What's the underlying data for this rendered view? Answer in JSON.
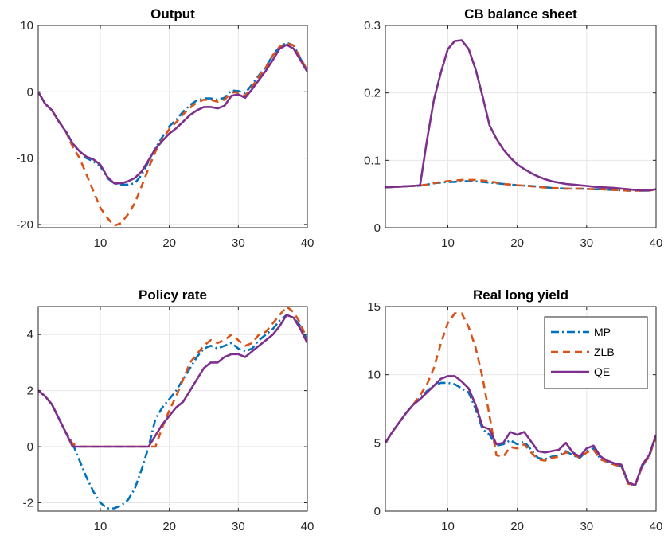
{
  "colors": {
    "MP": "#0072BD",
    "ZLB": "#D95319",
    "QE": "#7E2F8E",
    "grid": "#e6e6e6",
    "axis": "#262626"
  },
  "legend": {
    "items": [
      "MP",
      "ZLB",
      "QE"
    ],
    "placement": "top-right of Real long yield panel"
  },
  "chart_data": [
    {
      "type": "line",
      "title": "Output",
      "xlabel": "",
      "ylabel": "",
      "xlim": [
        1,
        40
      ],
      "ylim": [
        -20.5,
        10
      ],
      "xticks": [
        10,
        20,
        30,
        40
      ],
      "yticks": [
        -20,
        -10,
        0,
        10
      ],
      "yticklabels": [
        "-20",
        "-10",
        "0",
        "10"
      ],
      "grid": true,
      "x": [
        1,
        2,
        3,
        4,
        5,
        6,
        7,
        8,
        9,
        10,
        11,
        12,
        13,
        14,
        15,
        16,
        17,
        18,
        19,
        20,
        21,
        22,
        23,
        24,
        25,
        26,
        27,
        28,
        29,
        30,
        31,
        32,
        33,
        34,
        35,
        36,
        37,
        38,
        39,
        40
      ],
      "series": [
        {
          "name": "MP",
          "values": [
            0,
            -1.8,
            -2.8,
            -4.5,
            -6,
            -7.8,
            -9,
            -10,
            -10.5,
            -11.2,
            -13,
            -13.8,
            -14,
            -14,
            -13.8,
            -12.5,
            -10.5,
            -8.5,
            -6.8,
            -5.2,
            -4.2,
            -3,
            -2,
            -1.3,
            -1,
            -1,
            -1.2,
            -0.9,
            0.2,
            0.1,
            -0.2,
            1.1,
            2.5,
            3.8,
            5.5,
            6.8,
            7.4,
            7,
            5,
            3.2
          ]
        },
        {
          "name": "ZLB",
          "values": [
            0,
            -1.8,
            -2.8,
            -4.5,
            -6,
            -8.3,
            -10,
            -12.5,
            -15,
            -17.5,
            -19,
            -20.2,
            -19.8,
            -18.5,
            -16.8,
            -14.2,
            -11.5,
            -9,
            -7.2,
            -5.6,
            -4.6,
            -3.4,
            -2.4,
            -1.6,
            -1.2,
            -1.2,
            -1.5,
            -1.2,
            -0.1,
            -0.1,
            -0.6,
            0.8,
            2.3,
            3.7,
            5.5,
            6.8,
            7.3,
            7,
            5.1,
            3.2
          ]
        },
        {
          "name": "QE",
          "values": [
            0,
            -1.8,
            -2.8,
            -4.5,
            -6,
            -7.8,
            -9,
            -9.8,
            -10.2,
            -11,
            -12.8,
            -13.8,
            -13.8,
            -13.5,
            -13,
            -12,
            -10.3,
            -8.6,
            -7.4,
            -6.3,
            -5.5,
            -4.5,
            -3.5,
            -2.8,
            -2.3,
            -2.3,
            -2.5,
            -2.1,
            -0.6,
            -0.4,
            -0.9,
            0.4,
            1.8,
            3.2,
            4.8,
            6.5,
            7.1,
            6.5,
            4.8,
            3
          ]
        }
      ]
    },
    {
      "type": "line",
      "title": "CB balance sheet",
      "xlabel": "",
      "ylabel": "",
      "xlim": [
        1,
        40
      ],
      "ylim": [
        0,
        0.3
      ],
      "xticks": [
        10,
        20,
        30,
        40
      ],
      "yticks": [
        0,
        0.1,
        0.2,
        0.3
      ],
      "yticklabels": [
        "0",
        "0.1",
        "0.2",
        "0.3"
      ],
      "grid": true,
      "x": [
        1,
        2,
        3,
        4,
        5,
        6,
        7,
        8,
        9,
        10,
        11,
        12,
        13,
        14,
        15,
        16,
        17,
        18,
        19,
        20,
        21,
        22,
        23,
        24,
        25,
        26,
        27,
        28,
        29,
        30,
        31,
        32,
        33,
        34,
        35,
        36,
        37,
        38,
        39,
        40
      ],
      "series": [
        {
          "name": "MP",
          "values": [
            0.06,
            0.0605,
            0.061,
            0.0615,
            0.062,
            0.0625,
            0.064,
            0.066,
            0.067,
            0.068,
            0.068,
            0.069,
            0.069,
            0.069,
            0.068,
            0.067,
            0.066,
            0.065,
            0.064,
            0.063,
            0.0625,
            0.062,
            0.061,
            0.06,
            0.059,
            0.0585,
            0.058,
            0.058,
            0.058,
            0.0575,
            0.057,
            0.057,
            0.0565,
            0.056,
            0.0555,
            0.055,
            0.055,
            0.055,
            0.055,
            0.057
          ]
        },
        {
          "name": "ZLB",
          "values": [
            0.06,
            0.0605,
            0.061,
            0.0615,
            0.062,
            0.0625,
            0.064,
            0.066,
            0.068,
            0.069,
            0.07,
            0.071,
            0.071,
            0.071,
            0.07,
            0.069,
            0.067,
            0.065,
            0.064,
            0.063,
            0.0625,
            0.0615,
            0.0605,
            0.0595,
            0.059,
            0.0585,
            0.058,
            0.058,
            0.058,
            0.0575,
            0.057,
            0.057,
            0.0565,
            0.056,
            0.0555,
            0.055,
            0.055,
            0.055,
            0.055,
            0.057
          ]
        },
        {
          "name": "QE",
          "values": [
            0.06,
            0.0605,
            0.061,
            0.0615,
            0.062,
            0.063,
            0.13,
            0.19,
            0.23,
            0.265,
            0.277,
            0.278,
            0.265,
            0.235,
            0.195,
            0.152,
            0.132,
            0.116,
            0.104,
            0.094,
            0.087,
            0.081,
            0.076,
            0.072,
            0.069,
            0.067,
            0.065,
            0.064,
            0.063,
            0.062,
            0.061,
            0.06,
            0.0595,
            0.059,
            0.058,
            0.057,
            0.056,
            0.0555,
            0.0555,
            0.057
          ]
        }
      ]
    },
    {
      "type": "line",
      "title": "Policy rate",
      "xlabel": "",
      "ylabel": "",
      "xlim": [
        1,
        40
      ],
      "ylim": [
        -2.3,
        5
      ],
      "xticks": [
        10,
        20,
        30,
        40
      ],
      "yticks": [
        -2,
        0,
        2,
        4
      ],
      "yticklabels": [
        "-2",
        "0",
        "2",
        "4"
      ],
      "grid": true,
      "x": [
        1,
        2,
        3,
        4,
        5,
        6,
        7,
        8,
        9,
        10,
        11,
        12,
        13,
        14,
        15,
        16,
        17,
        18,
        19,
        20,
        21,
        22,
        23,
        24,
        25,
        26,
        27,
        28,
        29,
        30,
        31,
        32,
        33,
        34,
        35,
        36,
        37,
        38,
        39,
        40
      ],
      "series": [
        {
          "name": "MP",
          "values": [
            2,
            1.8,
            1.5,
            1,
            0.5,
            0.1,
            -0.5,
            -1.1,
            -1.6,
            -2,
            -2.2,
            -2.2,
            -2.1,
            -1.9,
            -1.5,
            -0.8,
            0,
            1,
            1.4,
            1.7,
            2,
            2.4,
            2.8,
            3.2,
            3.5,
            3.6,
            3.5,
            3.6,
            3.7,
            3.5,
            3.4,
            3.5,
            3.8,
            4,
            4.2,
            4.5,
            4.7,
            4.6,
            4.3,
            3.8
          ]
        },
        {
          "name": "ZLB",
          "values": [
            2,
            1.8,
            1.5,
            1,
            0.5,
            0.1,
            0,
            0,
            0,
            0,
            0,
            0,
            0,
            0,
            0,
            0,
            0,
            0,
            0.7,
            1.3,
            1.8,
            2.4,
            3,
            3.3,
            3.6,
            3.8,
            3.7,
            3.8,
            4,
            3.8,
            3.6,
            3.7,
            4,
            4.1,
            4.4,
            4.7,
            5,
            4.8,
            4.4,
            3.8
          ]
        },
        {
          "name": "QE",
          "values": [
            2,
            1.8,
            1.5,
            1,
            0.5,
            0,
            0,
            0,
            0,
            0,
            0,
            0,
            0,
            0,
            0,
            0,
            0,
            0.4,
            0.8,
            1.1,
            1.4,
            1.6,
            2,
            2.4,
            2.8,
            3,
            3,
            3.2,
            3.3,
            3.3,
            3.2,
            3.4,
            3.6,
            3.8,
            4,
            4.3,
            4.7,
            4.6,
            4.2,
            3.7
          ]
        }
      ]
    },
    {
      "type": "line",
      "title": "Real long yield",
      "xlabel": "",
      "ylabel": "",
      "xlim": [
        1,
        40
      ],
      "ylim": [
        0,
        15
      ],
      "xticks": [
        10,
        20,
        30,
        40
      ],
      "yticks": [
        0,
        5,
        10,
        15
      ],
      "yticklabels": [
        "0",
        "5",
        "10",
        "15"
      ],
      "grid": true,
      "x": [
        1,
        2,
        3,
        4,
        5,
        6,
        7,
        8,
        9,
        10,
        11,
        12,
        13,
        14,
        15,
        16,
        17,
        18,
        19,
        20,
        21,
        22,
        23,
        24,
        25,
        26,
        27,
        28,
        29,
        30,
        31,
        32,
        33,
        34,
        35,
        36,
        37,
        38,
        39,
        40
      ],
      "series": [
        {
          "name": "MP",
          "values": [
            5,
            5.8,
            6.5,
            7.2,
            7.8,
            8.3,
            8.8,
            9.2,
            9.4,
            9.4,
            9.3,
            9,
            8.7,
            7.5,
            6,
            5.6,
            4.8,
            4.9,
            5.2,
            4.9,
            5.1,
            4.5,
            3.9,
            3.8,
            4,
            4.1,
            4.4,
            4.1,
            3.9,
            4.4,
            4.6,
            3.8,
            3.6,
            3.4,
            3.3,
            2,
            1.9,
            3.3,
            4,
            5.5
          ]
        },
        {
          "name": "ZLB",
          "values": [
            5,
            5.8,
            6.5,
            7.2,
            7.8,
            8.5,
            9.3,
            10.5,
            12.3,
            13.8,
            14.5,
            14.5,
            13.5,
            12,
            9.8,
            7,
            4.1,
            4,
            4.7,
            4.6,
            4.9,
            4.3,
            3.8,
            3.7,
            3.9,
            4,
            4.3,
            4.2,
            3.9,
            4.3,
            4.5,
            3.8,
            3.6,
            3.4,
            3.3,
            2,
            1.9,
            3.3,
            4,
            5.5
          ]
        },
        {
          "name": "QE",
          "values": [
            5,
            5.8,
            6.5,
            7.2,
            7.8,
            8.2,
            8.7,
            9.2,
            9.7,
            9.9,
            9.9,
            9.5,
            9,
            7.8,
            6.2,
            6,
            4.9,
            5,
            5.8,
            5.6,
            5.8,
            5.1,
            4.4,
            4.3,
            4.4,
            4.5,
            5,
            4.3,
            4,
            4.6,
            4.8,
            4,
            3.7,
            3.5,
            3.4,
            2.1,
            1.9,
            3.4,
            4.1,
            5.6
          ]
        }
      ]
    }
  ]
}
